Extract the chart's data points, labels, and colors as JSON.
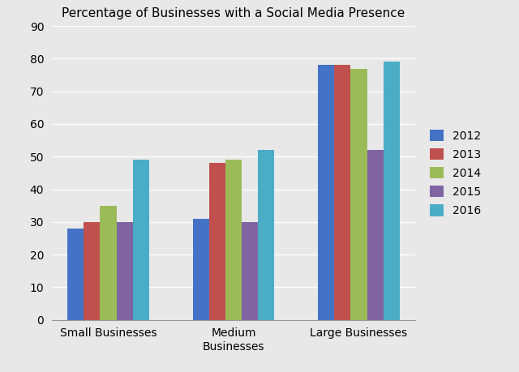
{
  "title": "Percentage of Businesses with a Social Media Presence",
  "categories": [
    "Small Businesses",
    "Medium\nBusinesses",
    "Large Businesses"
  ],
  "years": [
    "2012",
    "2013",
    "2014",
    "2015",
    "2016"
  ],
  "values": {
    "Small Businesses": [
      28,
      30,
      35,
      30,
      49
    ],
    "Medium\nBusinesses": [
      31,
      48,
      49,
      30,
      52
    ],
    "Large Businesses": [
      78,
      78,
      77,
      52,
      79
    ]
  },
  "colors": [
    "#4472C4",
    "#C0504D",
    "#9BBB59",
    "#8064A2",
    "#4BACC6"
  ],
  "ylim": [
    0,
    90
  ],
  "yticks": [
    0,
    10,
    20,
    30,
    40,
    50,
    60,
    70,
    80,
    90
  ],
  "background_color": "#E8E8E8",
  "plot_bg_color": "#E8E8E8",
  "bar_width": 0.13,
  "title_fontsize": 11,
  "legend_fontsize": 10,
  "tick_fontsize": 10
}
